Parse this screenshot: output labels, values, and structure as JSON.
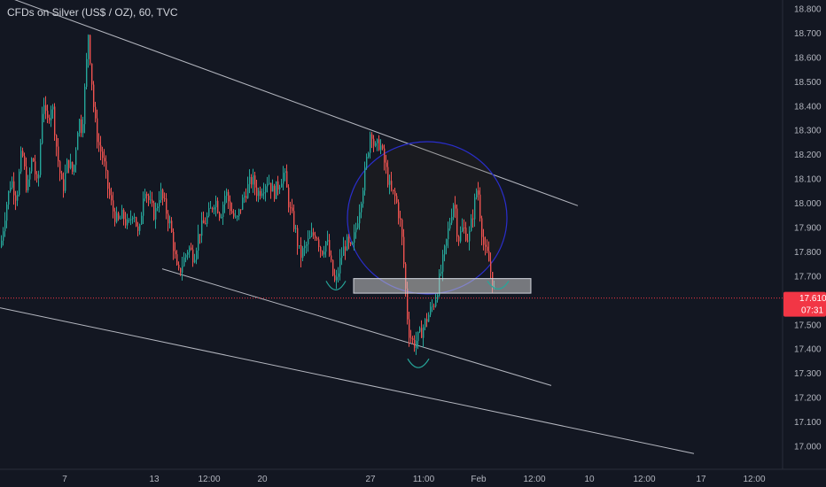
{
  "header": {
    "title": "CFDs on Silver (US$ / OZ), 60, TVC"
  },
  "colors": {
    "background": "#131722",
    "up": "#26a69a",
    "down": "#ef5350",
    "trendline": "#d1d4dc",
    "circle": "#2a2ecd",
    "current_price_line": "#f23645"
  },
  "chart_data": {
    "type": "candlestick",
    "title": "CFDs on Silver (US$ / OZ), 60, TVC",
    "ylim": [
      16.94,
      18.84
    ],
    "y_ticks": [
      "18.800",
      "18.700",
      "18.600",
      "18.500",
      "18.400",
      "18.300",
      "18.200",
      "18.100",
      "18.000",
      "17.900",
      "17.800",
      "17.700",
      "17.500",
      "17.400",
      "17.300",
      "17.200",
      "17.100",
      "17.000"
    ],
    "x_ticks": [
      "7",
      "13",
      "12:00",
      "20",
      "27",
      "11:00",
      "Feb",
      "12:00",
      "10",
      "12:00",
      "17",
      "12:00"
    ],
    "current_price": "17.610",
    "countdown": "07:31",
    "price_path": [
      [
        0,
        17.82
      ],
      [
        6,
        17.98
      ],
      [
        12,
        18.1
      ],
      [
        18,
        18.02
      ],
      [
        24,
        18.22
      ],
      [
        30,
        18.05
      ],
      [
        36,
        18.2
      ],
      [
        42,
        18.05
      ],
      [
        48,
        18.45
      ],
      [
        52,
        18.32
      ],
      [
        58,
        18.42
      ],
      [
        64,
        18.2
      ],
      [
        70,
        18.05
      ],
      [
        76,
        18.18
      ],
      [
        82,
        18.12
      ],
      [
        88,
        18.35
      ],
      [
        92,
        18.3
      ],
      [
        96,
        18.52
      ],
      [
        99,
        18.7
      ],
      [
        102,
        18.55
      ],
      [
        106,
        18.35
      ],
      [
        110,
        18.25
      ],
      [
        116,
        18.18
      ],
      [
        120,
        18.08
      ],
      [
        126,
        17.98
      ],
      [
        132,
        17.92
      ],
      [
        138,
        17.95
      ],
      [
        144,
        17.9
      ],
      [
        150,
        17.98
      ],
      [
        156,
        17.85
      ],
      [
        162,
        18.08
      ],
      [
        168,
        18.0
      ],
      [
        174,
        17.95
      ],
      [
        180,
        18.05
      ],
      [
        186,
        17.98
      ],
      [
        192,
        17.9
      ],
      [
        196,
        17.8
      ],
      [
        200,
        17.7
      ],
      [
        206,
        17.76
      ],
      [
        212,
        17.82
      ],
      [
        218,
        17.78
      ],
      [
        224,
        17.88
      ],
      [
        230,
        17.92
      ],
      [
        236,
        17.96
      ],
      [
        242,
        18.02
      ],
      [
        248,
        17.95
      ],
      [
        254,
        18.05
      ],
      [
        260,
        17.97
      ],
      [
        266,
        17.92
      ],
      [
        272,
        18.0
      ],
      [
        278,
        18.06
      ],
      [
        284,
        18.1
      ],
      [
        290,
        18.04
      ],
      [
        296,
        18.07
      ],
      [
        302,
        18.1
      ],
      [
        308,
        18.04
      ],
      [
        314,
        18.08
      ],
      [
        320,
        18.13
      ],
      [
        326,
        17.98
      ],
      [
        332,
        17.9
      ],
      [
        338,
        17.78
      ],
      [
        344,
        17.82
      ],
      [
        350,
        17.86
      ],
      [
        356,
        17.88
      ],
      [
        362,
        17.8
      ],
      [
        368,
        17.85
      ],
      [
        374,
        17.72
      ],
      [
        378,
        17.66
      ],
      [
        384,
        17.78
      ],
      [
        390,
        17.84
      ],
      [
        396,
        17.8
      ],
      [
        402,
        17.92
      ],
      [
        408,
        18.05
      ],
      [
        414,
        18.2
      ],
      [
        418,
        18.32
      ],
      [
        422,
        18.22
      ],
      [
        428,
        18.25
      ],
      [
        434,
        18.15
      ],
      [
        440,
        18.05
      ],
      [
        446,
        18.02
      ],
      [
        452,
        17.9
      ],
      [
        456,
        17.7
      ],
      [
        460,
        17.48
      ],
      [
        466,
        17.42
      ],
      [
        472,
        17.45
      ],
      [
        478,
        17.5
      ],
      [
        484,
        17.55
      ],
      [
        490,
        17.6
      ],
      [
        496,
        17.7
      ],
      [
        502,
        17.82
      ],
      [
        508,
        17.95
      ],
      [
        512,
        18.02
      ],
      [
        516,
        17.85
      ],
      [
        522,
        17.9
      ],
      [
        528,
        17.85
      ],
      [
        534,
        17.98
      ],
      [
        538,
        18.08
      ],
      [
        542,
        17.92
      ],
      [
        546,
        17.8
      ],
      [
        550,
        17.78
      ],
      [
        554,
        17.7
      ],
      [
        558,
        17.62
      ]
    ],
    "lines": [
      {
        "from": [
          0,
          18.86
        ],
        "to": [
          652,
          17.99
        ]
      },
      {
        "from": [
          183,
          17.73
        ],
        "to": [
          622,
          17.25
        ]
      },
      {
        "from": [
          0,
          17.57
        ],
        "to": [
          783,
          16.97
        ]
      }
    ],
    "support_band": {
      "x_from": 399,
      "x_to": 599,
      "y_from": 17.69,
      "y_to": 17.63
    },
    "circle": {
      "cx": 482,
      "cy": 17.94,
      "rx": 90,
      "ry": 86
    },
    "arcs": [
      {
        "x_from": 368,
        "x_to": 390,
        "y": 17.68,
        "depth": 10
      },
      {
        "x_from": 460,
        "x_to": 484,
        "y": 17.36,
        "depth": 10
      },
      {
        "x_from": 550,
        "x_to": 574,
        "y": 17.68,
        "depth": 9
      }
    ]
  }
}
